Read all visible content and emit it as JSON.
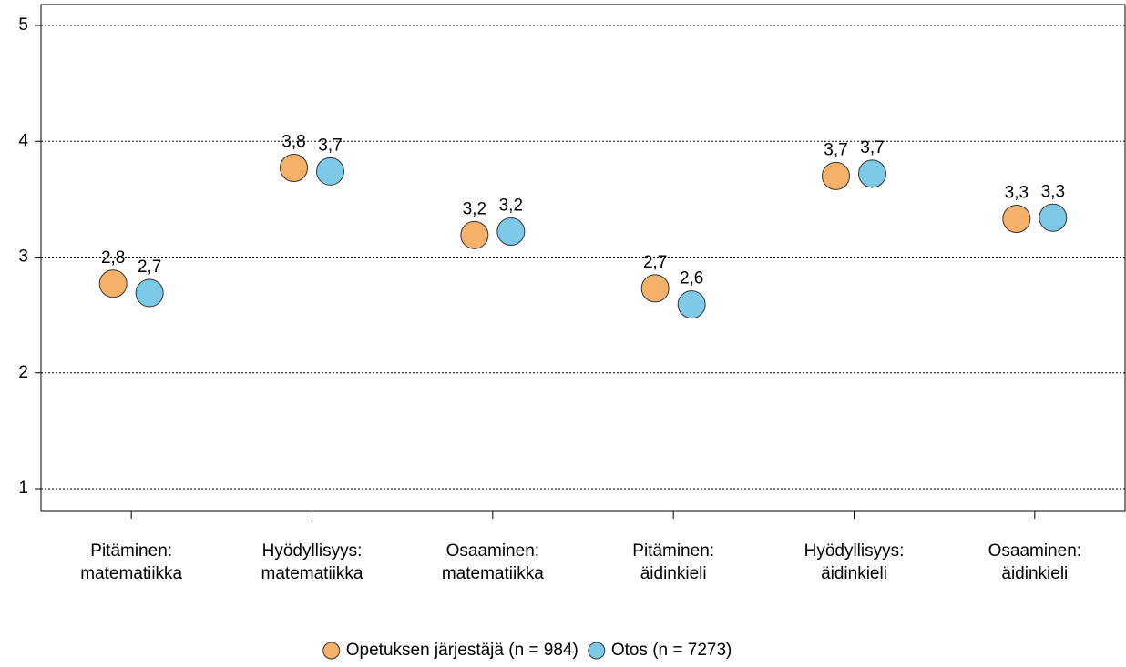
{
  "chart_data": {
    "type": "dot",
    "categories": [
      "Pitäminen:\nmatematiikka",
      "Hyödyllisyys:\nmatematiikka",
      "Osaaminen:\nmatematiikka",
      "Pitäminen:\näidinkieli",
      "Hyödyllisyys:\näidinkieli",
      "Osaaminen:\näidinkieli"
    ],
    "series": [
      {
        "name": "Opetuksen järjestäjä (n = 984)",
        "color": "#f5b06a",
        "values": [
          2.77,
          3.77,
          3.19,
          2.73,
          3.7,
          3.33
        ],
        "value_labels": [
          "2,8",
          "3,8",
          "3,2",
          "2,7",
          "3,7",
          "3,3"
        ]
      },
      {
        "name": "Otos (n = 7273)",
        "color": "#7ec8e8",
        "values": [
          2.69,
          3.74,
          3.22,
          2.59,
          3.72,
          3.34
        ],
        "value_labels": [
          "2,7",
          "3,7",
          "3,2",
          "2,6",
          "3,7",
          "3,3"
        ]
      }
    ],
    "ylim": [
      1,
      5
    ],
    "yticks": [
      1,
      2,
      3,
      4,
      5
    ],
    "grid": true,
    "legend": "bottom"
  }
}
